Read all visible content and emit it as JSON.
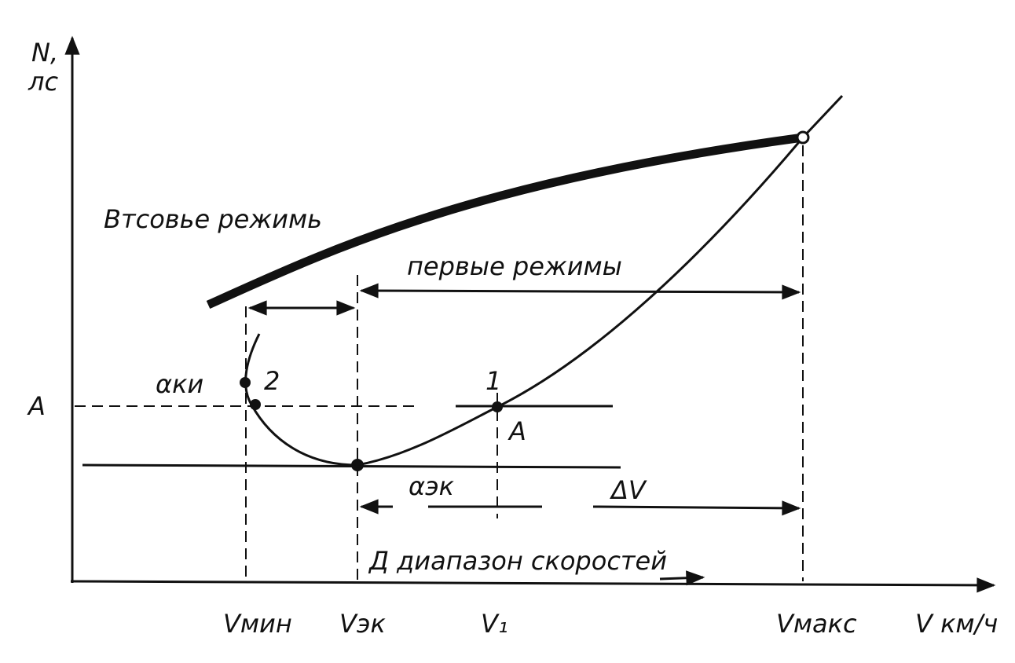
{
  "axes": {
    "y_label": "N,",
    "y_unit": "лс",
    "x_label": "V км/ч"
  },
  "curve_labels": {
    "second_modes": "Втсовье режимь",
    "first_modes": "первые режимы"
  },
  "annotations": {
    "alpha_min": "αки",
    "point_2": "2",
    "point_1": "1",
    "level_a_axis": "A",
    "level_a_point": "A",
    "alpha_ek": "αэк",
    "delta_v": "ΔV",
    "speed_range": "Д  диапазон скоростей"
  },
  "x_marks": [
    "Vмин",
    "Vэк",
    "V₁",
    "Vмакс"
  ]
}
